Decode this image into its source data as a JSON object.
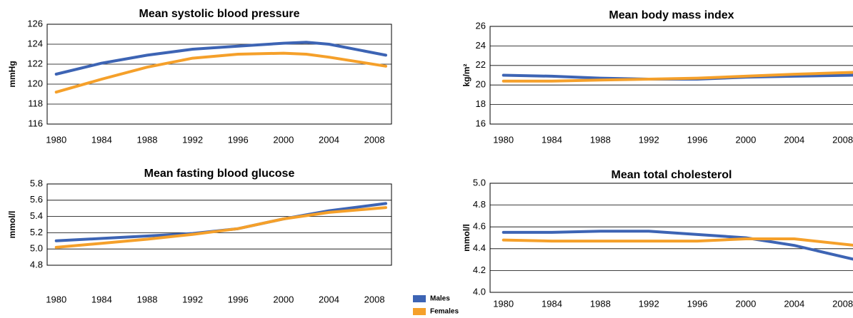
{
  "chart_data": [
    {
      "type": "line",
      "title": "Mean systolic blood pressure",
      "y_label": "mmHg",
      "x": [
        1980,
        1984,
        1988,
        1992,
        1996,
        2000,
        2002,
        2004,
        2009
      ],
      "xlim": [
        1979.2,
        2009.5
      ],
      "xticks": [
        1980,
        1984,
        1988,
        1992,
        1996,
        2000,
        2004,
        2008
      ],
      "ylim": [
        116,
        126
      ],
      "yticks": [
        116,
        118,
        120,
        122,
        124,
        126
      ],
      "grid": true,
      "series": [
        {
          "name": "Males",
          "color": "#3d64b4",
          "values": [
            121.0,
            122.1,
            122.9,
            123.5,
            123.8,
            124.1,
            124.2,
            124.0,
            122.9
          ]
        },
        {
          "name": "Females",
          "color": "#f5a02a",
          "values": [
            119.2,
            120.5,
            121.7,
            122.6,
            123.0,
            123.1,
            123.0,
            122.7,
            121.8
          ]
        }
      ]
    },
    {
      "type": "line",
      "title": "Mean body mass index",
      "y_label": "kg/m²",
      "x": [
        1980,
        1984,
        1988,
        1992,
        1996,
        2000,
        2004,
        2009
      ],
      "xlim": [
        1978.9,
        2009.2
      ],
      "xticks": [
        1980,
        1984,
        1988,
        1992,
        1996,
        2000,
        2004,
        2008
      ],
      "ylim": [
        16,
        26
      ],
      "yticks": [
        16,
        18,
        20,
        22,
        24,
        26
      ],
      "grid": true,
      "series": [
        {
          "color": "#3d64b4",
          "values": [
            21.0,
            20.9,
            20.7,
            20.6,
            20.6,
            20.8,
            20.9,
            21.0
          ]
        },
        {
          "color": "#f5a02a",
          "values": [
            20.4,
            20.4,
            20.5,
            20.6,
            20.7,
            20.9,
            21.1,
            21.3
          ]
        }
      ]
    },
    {
      "type": "line",
      "title": "Mean fasting blood glucose",
      "y_label": "mmol/l",
      "x": [
        1980,
        1984,
        1988,
        1992,
        1996,
        2000,
        2004,
        2009
      ],
      "xlim": [
        1979.2,
        2009.5
      ],
      "xticks": [
        1980,
        1984,
        1988,
        1992,
        1996,
        2000,
        2004,
        2008
      ],
      "ylim": [
        4.8,
        5.8
      ],
      "yticks": [
        4.8,
        {
          "value": 5,
          "label": "5.0"
        },
        5.2,
        5.4,
        5.6,
        5.8
      ],
      "grid": true,
      "series": [
        {
          "color": "#3d64b4",
          "values": [
            5.1,
            5.13,
            5.16,
            5.19,
            5.25,
            5.37,
            5.47,
            5.56
          ]
        },
        {
          "color": "#f5a02a",
          "values": [
            5.02,
            5.07,
            5.12,
            5.18,
            5.25,
            5.37,
            5.45,
            5.51
          ]
        }
      ]
    },
    {
      "type": "line",
      "title": "Mean total cholesterol",
      "y_label": "mmol/l",
      "x": [
        1980,
        1984,
        1988,
        1992,
        1996,
        2000,
        2004,
        2009
      ],
      "xlim": [
        1978.9,
        2009.2
      ],
      "xticks": [
        1980,
        1984,
        1988,
        1992,
        1996,
        2000,
        2004,
        2008
      ],
      "ylim": [
        4,
        5
      ],
      "yticks": [
        {
          "value": 4,
          "label": "4.0"
        },
        4.2,
        4.4,
        4.6,
        4.8,
        {
          "value": 5,
          "label": "5.0"
        }
      ],
      "grid": true,
      "series": [
        {
          "color": "#3d64b4",
          "values": [
            4.55,
            4.55,
            4.56,
            4.56,
            4.53,
            4.5,
            4.43,
            4.3
          ]
        },
        {
          "color": "#f5a02a",
          "values": [
            4.48,
            4.47,
            4.47,
            4.47,
            4.47,
            4.49,
            4.49,
            4.43
          ]
        }
      ]
    }
  ]
}
